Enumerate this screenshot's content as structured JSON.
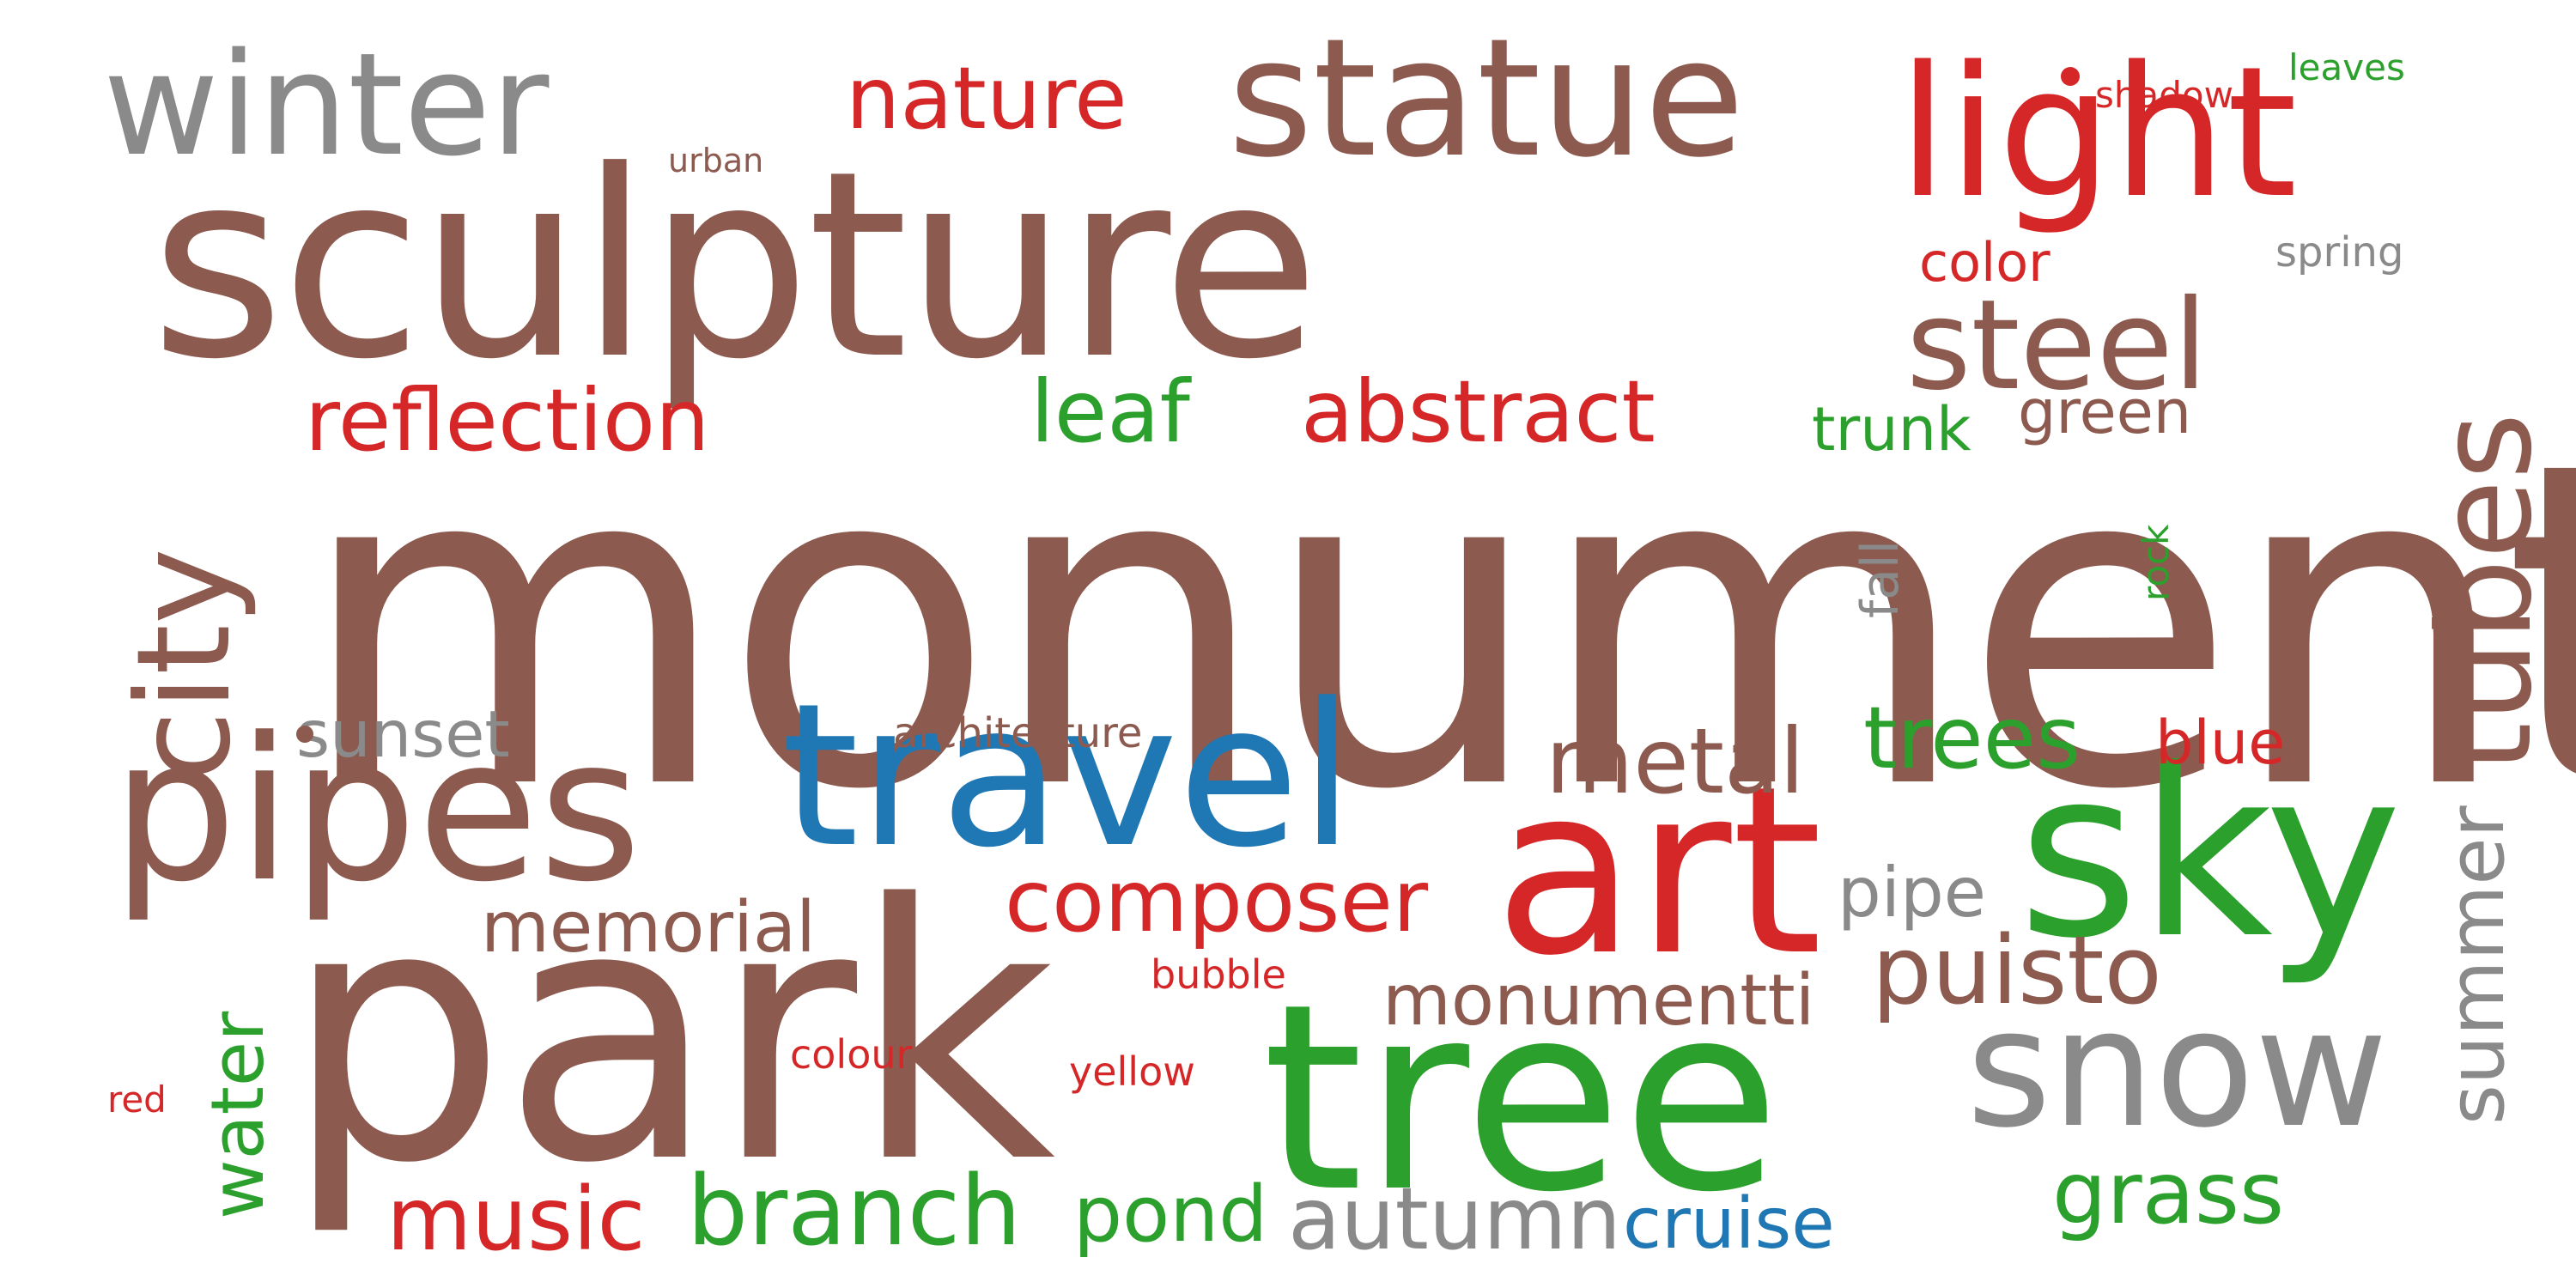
{
  "colors": {
    "brown": "#8c5a4f",
    "red": "#d62728",
    "green": "#2ca02c",
    "gray": "#8a8a8a",
    "blue": "#1f77b4"
  },
  "words": {
    "monument": "monument",
    "sculpture": "sculpture",
    "park": "park",
    "tree": "tree",
    "sky": "sky",
    "art": "art",
    "travel": "travel",
    "pipes": "pipes",
    "statue": "statue",
    "light": "light",
    "winter": "winter",
    "snow": "snow",
    "tubes": "tubes",
    "city": "city",
    "steel": "steel",
    "reflection": "reflection",
    "leaf": "leaf",
    "abstract": "abstract",
    "trunk": "trunk",
    "green": "green",
    "nature": "nature",
    "color": "color",
    "urban": "urban",
    "shadow": "shadow",
    "leaves": "leaves",
    "spring": "spring",
    "fall": "fall",
    "rock": "rock",
    "metal": "metal",
    "trees": "trees",
    "blue": "blue",
    "sunset": "sunset",
    "architecture": "architecture",
    "composer": "composer",
    "pipe": "pipe",
    "puisto": "puisto",
    "summer": "summer",
    "memorial": "memorial",
    "water": "water",
    "monumentti": "monumentti",
    "bubble": "bubble",
    "colour": "colour",
    "yellow": "yellow",
    "red": "red",
    "music": "music",
    "branch": "branch",
    "pond": "pond",
    "autumn": "autumn",
    "cruise": "cruise",
    "grass": "grass"
  }
}
